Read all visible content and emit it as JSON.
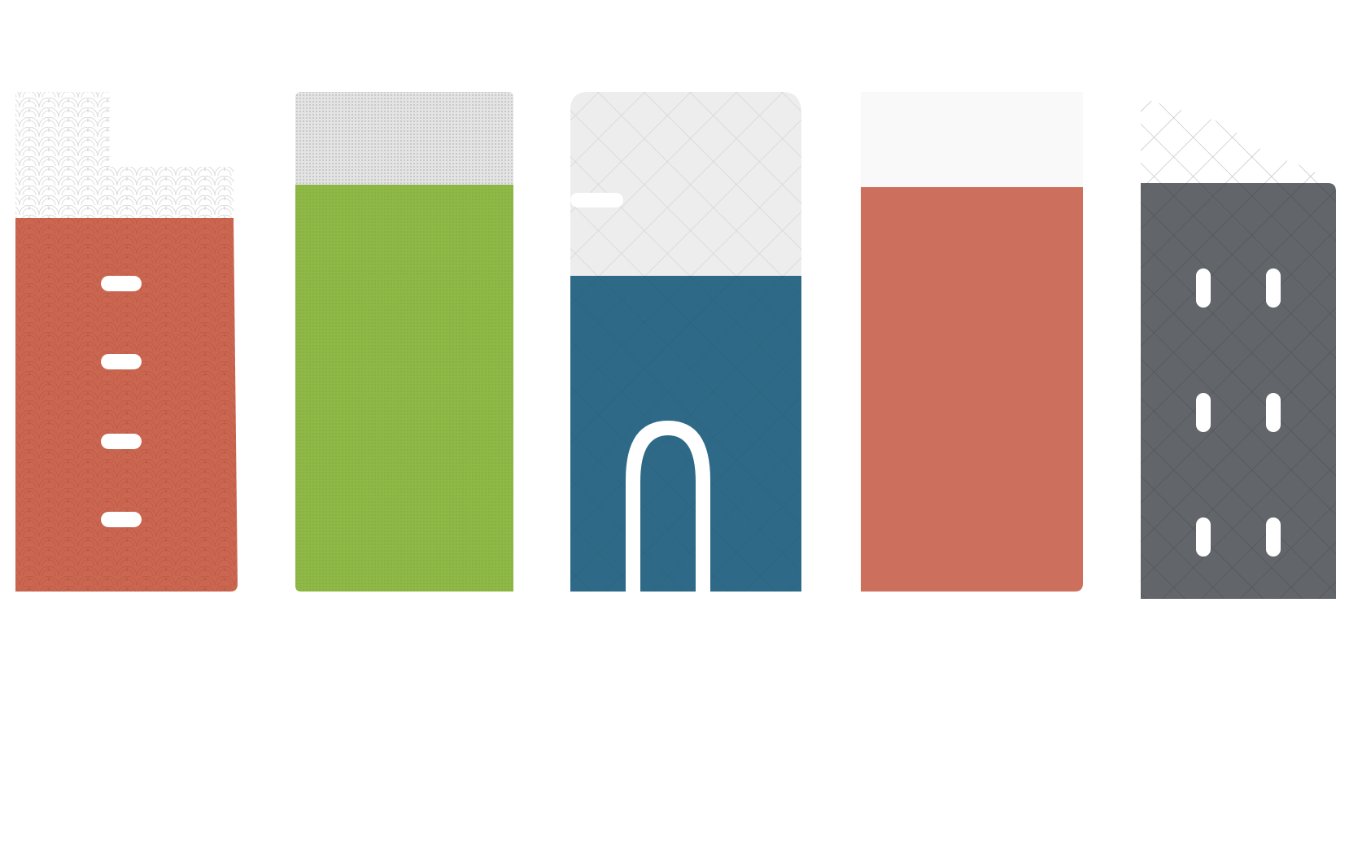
{
  "scene": {
    "kind": "illustration",
    "buildings": [
      {
        "name": "building-1",
        "color": "#CC6650",
        "pattern": "scallop",
        "windows": 4,
        "window_style": "horizontal-slot"
      },
      {
        "name": "building-2",
        "color": "#8FB946",
        "pattern": "fine-dots",
        "windows": 0
      },
      {
        "name": "building-3",
        "color": "#2E6A87",
        "pattern": "diamond-grid",
        "windows": 0,
        "feature": "arched-doorway"
      },
      {
        "name": "building-4",
        "color": "#CC705D",
        "pattern": "none",
        "windows": 0
      },
      {
        "name": "building-5",
        "color": "#62666B",
        "pattern": "diamond-lattice",
        "windows": 6,
        "window_style": "vertical-slot"
      }
    ],
    "background": "#FFFFFF",
    "pattern_tint": "#E7E7E7"
  }
}
